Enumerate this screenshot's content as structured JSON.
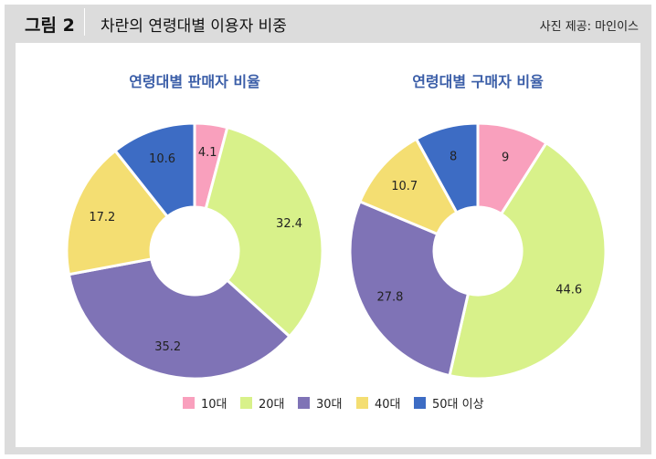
{
  "header": {
    "figure_label": "그림 2",
    "title": "차란의 연령대별 이용자 비중",
    "source": "사진 제공: 마인이스"
  },
  "colors": {
    "10대": "#f9a0bd",
    "20대": "#d8f18a",
    "30대": "#7f73b6",
    "40대": "#f4de72",
    "50대 이상": "#3d6cc4"
  },
  "chart_data": [
    {
      "type": "pie",
      "title": "연령대별 판매자 비율",
      "categories": [
        "10대",
        "20대",
        "30대",
        "40대",
        "50대 이상"
      ],
      "values": [
        4.1,
        32.4,
        35.2,
        17.2,
        10.6
      ]
    },
    {
      "type": "pie",
      "title": "연령대별 구매자 비율",
      "categories": [
        "10대",
        "20대",
        "30대",
        "40대",
        "50대 이상"
      ],
      "values": [
        9,
        44.6,
        27.8,
        10.7,
        8
      ]
    }
  ],
  "legend": {
    "placement": "bottom",
    "items": [
      "10대",
      "20대",
      "30대",
      "40대",
      "50대 이상"
    ]
  }
}
